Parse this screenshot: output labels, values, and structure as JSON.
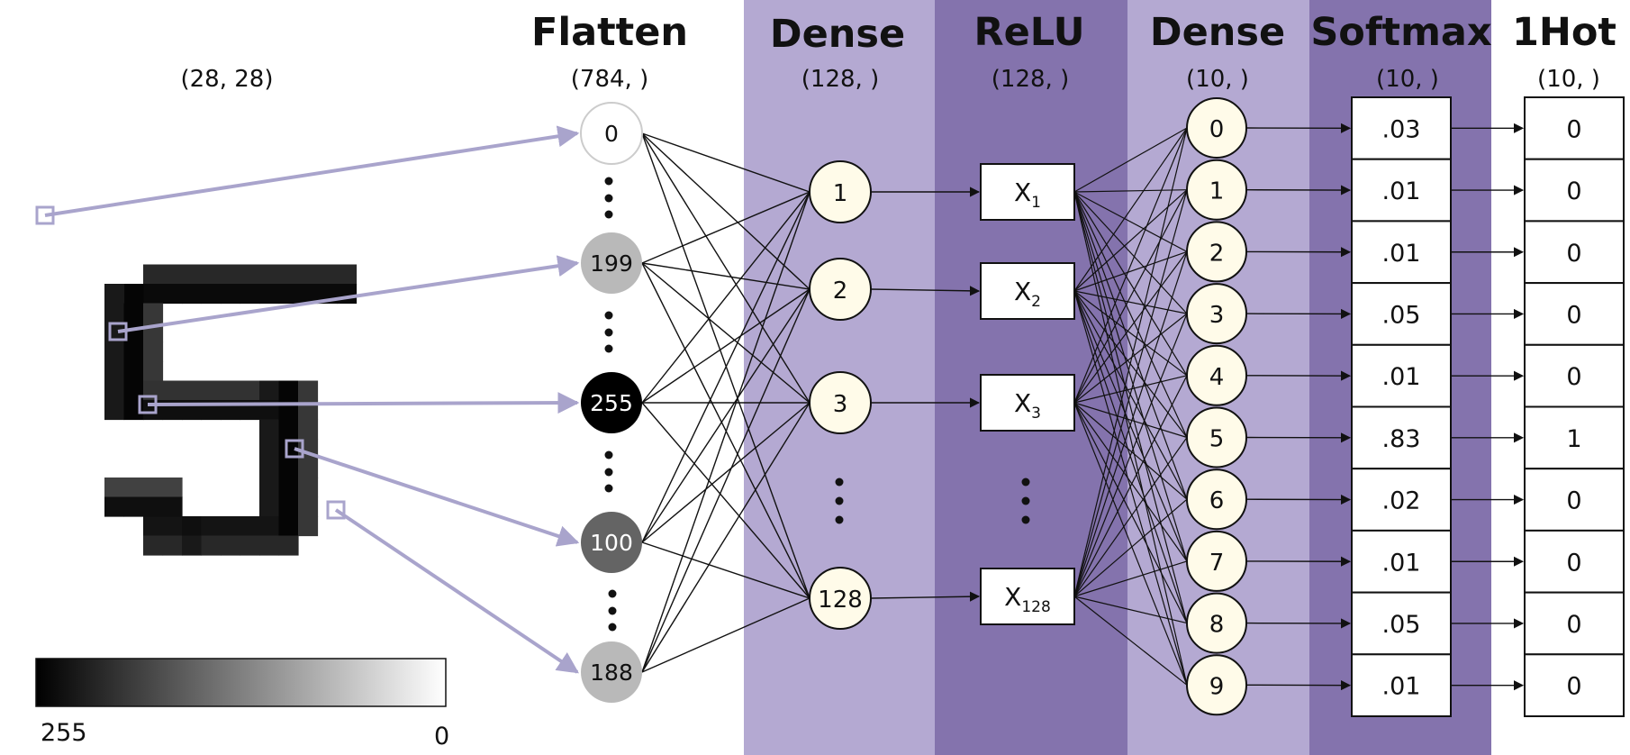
{
  "colors": {
    "band_light": "#b4a9d2",
    "band_dark": "#8473ad",
    "arrow": "#a9a4cc",
    "highlight": "#e00000"
  },
  "input": {
    "shape": "(28, 28)"
  },
  "colorbar": {
    "min_label": "255",
    "max_label": "0"
  },
  "flatten": {
    "title": "Flatten",
    "shape": "(784, )",
    "nodes": [
      {
        "label": "0",
        "value": 0
      },
      {
        "label": "199",
        "value": 70
      },
      {
        "label": "255",
        "value": 255
      },
      {
        "label": "100",
        "value": 155
      },
      {
        "label": "188",
        "value": 70
      }
    ]
  },
  "dense1": {
    "title": "Dense",
    "shape": "(128, )",
    "nodes": [
      "1",
      "2",
      "3",
      "128"
    ]
  },
  "relu": {
    "title": "ReLU",
    "shape": "(128, )",
    "nodes": [
      {
        "base": "X",
        "sub": "1"
      },
      {
        "base": "X",
        "sub": "2"
      },
      {
        "base": "X",
        "sub": "3"
      },
      {
        "base": "X",
        "sub": "128"
      }
    ]
  },
  "dense2": {
    "title": "Dense",
    "shape": "(10, )",
    "nodes": [
      "0",
      "1",
      "2",
      "3",
      "4",
      "5",
      "6",
      "7",
      "8",
      "9"
    ]
  },
  "softmax": {
    "title": "Softmax",
    "shape": "(10, )",
    "values": [
      ".03",
      ".01",
      ".01",
      ".05",
      ".01",
      ".83",
      ".02",
      ".01",
      ".05",
      ".01"
    ]
  },
  "onehot": {
    "title": "1Hot",
    "shape": "(10, )",
    "values": [
      "0",
      "0",
      "0",
      "0",
      "0",
      "1",
      "0",
      "0",
      "0",
      "0"
    ]
  },
  "highlight_index": 5
}
